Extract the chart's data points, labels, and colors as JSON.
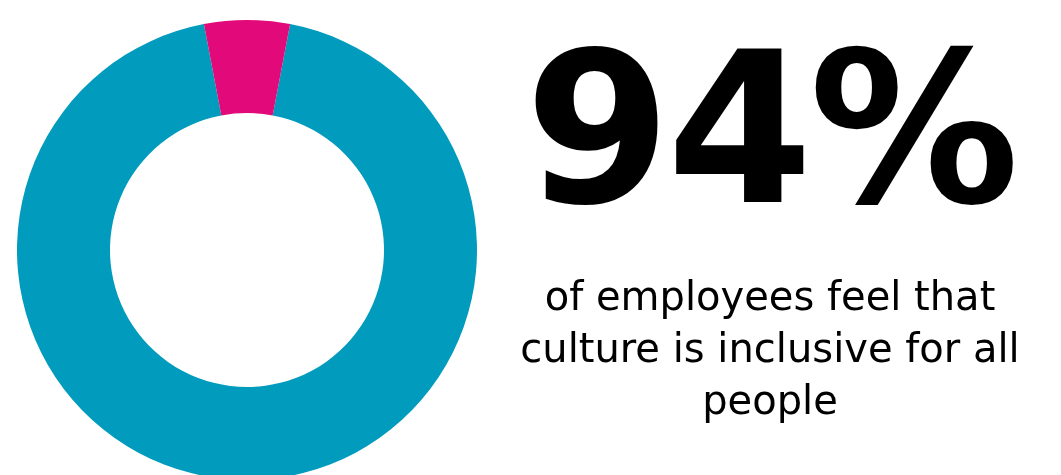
{
  "chart_data": {
    "type": "donut",
    "title": "94%",
    "categories": [
      null,
      null
    ],
    "values": [
      94,
      6
    ],
    "colors": [
      "#009bbd",
      "#e20a7a"
    ],
    "annotations": [
      "of employees feel that culture is inclusive for all people"
    ]
  }
}
